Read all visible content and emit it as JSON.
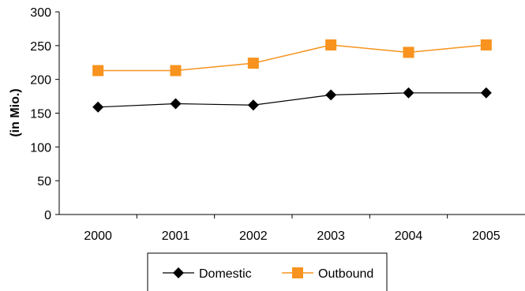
{
  "chart_data": {
    "type": "line",
    "title": "",
    "xlabel": "",
    "ylabel": "(in Mio.)",
    "categories": [
      "2000",
      "2001",
      "2002",
      "2003",
      "2004",
      "2005"
    ],
    "ylim": [
      0,
      300
    ],
    "yticks": [
      "0",
      "50",
      "100",
      "150",
      "200",
      "250",
      "300"
    ],
    "grid": false,
    "legend_position": "bottom",
    "series": [
      {
        "name": "Domestic",
        "values": [
          159,
          164,
          162,
          177,
          180,
          180
        ],
        "color": "#000000",
        "marker": "diamond"
      },
      {
        "name": "Outbound",
        "values": [
          213,
          213,
          224,
          251,
          240,
          251
        ],
        "color": "#f7931e",
        "marker": "square"
      }
    ]
  }
}
